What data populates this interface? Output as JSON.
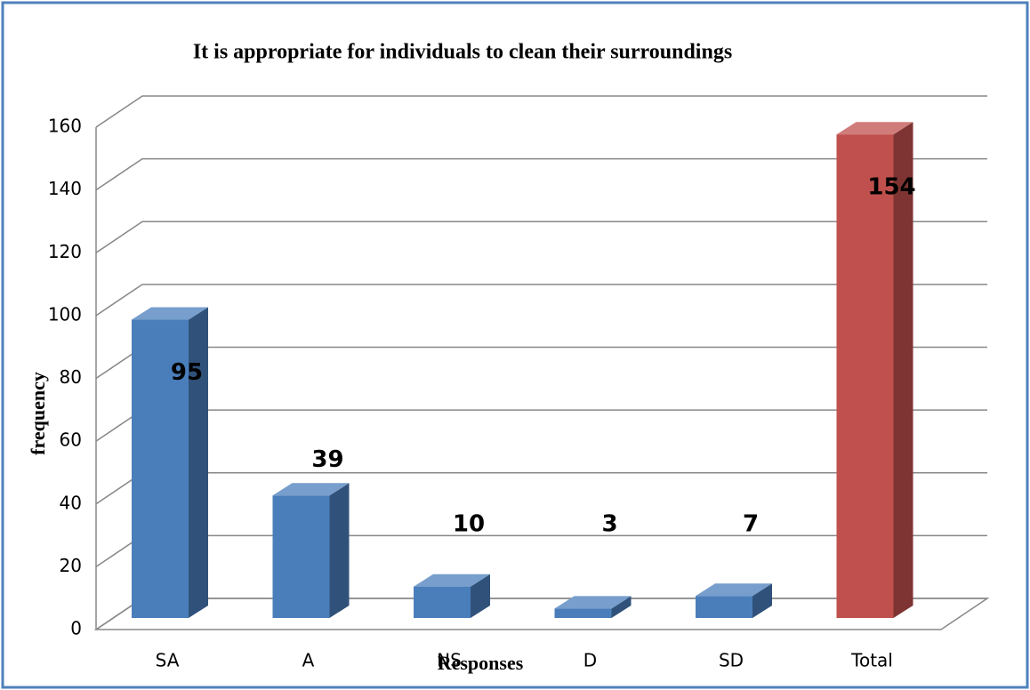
{
  "chart_data": {
    "type": "bar3d",
    "title": "It is appropriate for individuals to clean their surroundings",
    "x_label": "Responses",
    "y_label": "frequency",
    "categories": [
      "SA",
      "A",
      "NS",
      "D",
      "SD",
      "Total"
    ],
    "values": [
      95,
      39,
      10,
      3,
      7,
      154
    ],
    "colors": [
      "#4a7ebb",
      "#4a7ebb",
      "#4a7ebb",
      "#4a7ebb",
      "#4a7ebb",
      "#c0504d"
    ],
    "ylim": [
      0,
      160
    ],
    "yticks": [
      0,
      20,
      40,
      60,
      80,
      100,
      120,
      140,
      160
    ],
    "grid": true
  }
}
